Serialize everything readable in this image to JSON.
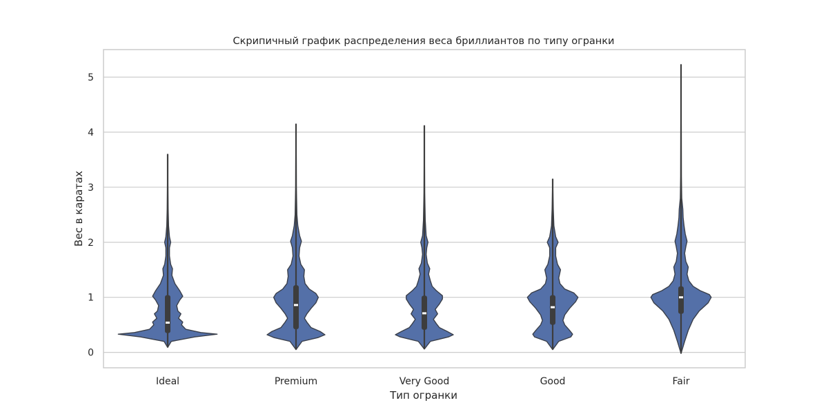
{
  "chart_data": {
    "type": "violin",
    "title": "Скрипичный график распределения веса бриллиантов по типу огранки",
    "xlabel": "Тип огранки",
    "ylabel": "Вес в каратах",
    "ylim": [
      -0.28,
      5.5
    ],
    "yticks": [
      0,
      1,
      2,
      3,
      4,
      5
    ],
    "grid": true,
    "colors": {
      "fill": "#5470a8",
      "edge": "#3a3f4a",
      "inner": "#3d3d3d",
      "median": "#ffffff",
      "grid": "#cccccc",
      "frame": "#cccccc"
    },
    "categories": [
      "Ideal",
      "Premium",
      "Very Good",
      "Good",
      "Fair"
    ],
    "violins": [
      {
        "category": "Ideal",
        "min": 0.09,
        "max": 3.6,
        "q1": 0.35,
        "median": 0.54,
        "q3": 1.04,
        "whisker_low": 0.2,
        "whisker_high": 2.05,
        "profile": [
          [
            0.09,
            0.0
          ],
          [
            0.2,
            0.06
          ],
          [
            0.28,
            0.45
          ],
          [
            0.33,
            0.82
          ],
          [
            0.36,
            0.55
          ],
          [
            0.42,
            0.3
          ],
          [
            0.5,
            0.23
          ],
          [
            0.55,
            0.25
          ],
          [
            0.62,
            0.18
          ],
          [
            0.7,
            0.22
          ],
          [
            0.75,
            0.17
          ],
          [
            0.85,
            0.15
          ],
          [
            0.95,
            0.2
          ],
          [
            1.02,
            0.25
          ],
          [
            1.12,
            0.2
          ],
          [
            1.25,
            0.12
          ],
          [
            1.4,
            0.07
          ],
          [
            1.52,
            0.08
          ],
          [
            1.6,
            0.05
          ],
          [
            1.75,
            0.03
          ],
          [
            1.9,
            0.03
          ],
          [
            2.0,
            0.05
          ],
          [
            2.1,
            0.03
          ],
          [
            2.3,
            0.015
          ],
          [
            2.6,
            0.008
          ],
          [
            3.0,
            0.004
          ],
          [
            3.6,
            0.0
          ]
        ]
      },
      {
        "category": "Premium",
        "min": 0.05,
        "max": 4.15,
        "q1": 0.42,
        "median": 0.86,
        "q3": 1.22,
        "whisker_low": 0.2,
        "whisker_high": 2.05,
        "profile": [
          [
            0.05,
            0.0
          ],
          [
            0.2,
            0.1
          ],
          [
            0.27,
            0.37
          ],
          [
            0.32,
            0.48
          ],
          [
            0.38,
            0.4
          ],
          [
            0.45,
            0.25
          ],
          [
            0.55,
            0.18
          ],
          [
            0.62,
            0.14
          ],
          [
            0.7,
            0.18
          ],
          [
            0.8,
            0.25
          ],
          [
            0.9,
            0.33
          ],
          [
            1.0,
            0.37
          ],
          [
            1.07,
            0.33
          ],
          [
            1.15,
            0.22
          ],
          [
            1.25,
            0.15
          ],
          [
            1.38,
            0.13
          ],
          [
            1.5,
            0.14
          ],
          [
            1.6,
            0.08
          ],
          [
            1.75,
            0.05
          ],
          [
            1.9,
            0.06
          ],
          [
            2.02,
            0.09
          ],
          [
            2.12,
            0.06
          ],
          [
            2.3,
            0.03
          ],
          [
            2.5,
            0.015
          ],
          [
            3.0,
            0.006
          ],
          [
            3.5,
            0.004
          ],
          [
            4.15,
            0.0
          ]
        ]
      },
      {
        "category": "Very Good",
        "min": 0.06,
        "max": 4.12,
        "q1": 0.41,
        "median": 0.71,
        "q3": 1.03,
        "whisker_low": 0.2,
        "whisker_high": 2.05,
        "profile": [
          [
            0.06,
            0.0
          ],
          [
            0.2,
            0.1
          ],
          [
            0.28,
            0.4
          ],
          [
            0.32,
            0.48
          ],
          [
            0.38,
            0.38
          ],
          [
            0.45,
            0.25
          ],
          [
            0.52,
            0.2
          ],
          [
            0.6,
            0.15
          ],
          [
            0.7,
            0.22
          ],
          [
            0.78,
            0.18
          ],
          [
            0.88,
            0.25
          ],
          [
            0.97,
            0.3
          ],
          [
            1.03,
            0.3
          ],
          [
            1.12,
            0.2
          ],
          [
            1.2,
            0.13
          ],
          [
            1.3,
            0.1
          ],
          [
            1.42,
            0.07
          ],
          [
            1.52,
            0.09
          ],
          [
            1.62,
            0.05
          ],
          [
            1.78,
            0.03
          ],
          [
            1.9,
            0.04
          ],
          [
            2.0,
            0.06
          ],
          [
            2.12,
            0.03
          ],
          [
            2.4,
            0.015
          ],
          [
            2.9,
            0.006
          ],
          [
            3.5,
            0.003
          ],
          [
            4.12,
            0.0
          ]
        ]
      },
      {
        "category": "Good",
        "min": 0.05,
        "max": 3.15,
        "q1": 0.5,
        "median": 0.82,
        "q3": 1.04,
        "whisker_low": 0.22,
        "whisker_high": 2.05,
        "profile": [
          [
            0.05,
            0.0
          ],
          [
            0.2,
            0.1
          ],
          [
            0.28,
            0.3
          ],
          [
            0.33,
            0.33
          ],
          [
            0.4,
            0.28
          ],
          [
            0.5,
            0.2
          ],
          [
            0.58,
            0.17
          ],
          [
            0.68,
            0.2
          ],
          [
            0.8,
            0.28
          ],
          [
            0.92,
            0.38
          ],
          [
            1.0,
            0.42
          ],
          [
            1.08,
            0.35
          ],
          [
            1.15,
            0.2
          ],
          [
            1.25,
            0.12
          ],
          [
            1.35,
            0.1
          ],
          [
            1.5,
            0.13
          ],
          [
            1.6,
            0.08
          ],
          [
            1.75,
            0.05
          ],
          [
            1.9,
            0.05
          ],
          [
            2.0,
            0.09
          ],
          [
            2.1,
            0.05
          ],
          [
            2.3,
            0.02
          ],
          [
            2.6,
            0.01
          ],
          [
            3.15,
            0.0
          ]
        ]
      },
      {
        "category": "Fair",
        "min": -0.02,
        "max": 5.23,
        "q1": 0.7,
        "median": 1.0,
        "q3": 1.2,
        "whisker_low": 0.22,
        "whisker_high": 1.92,
        "profile": [
          [
            -0.02,
            0.0
          ],
          [
            0.2,
            0.06
          ],
          [
            0.4,
            0.12
          ],
          [
            0.6,
            0.2
          ],
          [
            0.75,
            0.3
          ],
          [
            0.9,
            0.45
          ],
          [
            1.0,
            0.5
          ],
          [
            1.05,
            0.47
          ],
          [
            1.12,
            0.32
          ],
          [
            1.2,
            0.2
          ],
          [
            1.3,
            0.13
          ],
          [
            1.42,
            0.1
          ],
          [
            1.55,
            0.12
          ],
          [
            1.65,
            0.08
          ],
          [
            1.8,
            0.06
          ],
          [
            1.92,
            0.08
          ],
          [
            2.02,
            0.1
          ],
          [
            2.15,
            0.07
          ],
          [
            2.3,
            0.05
          ],
          [
            2.45,
            0.035
          ],
          [
            2.6,
            0.03
          ],
          [
            2.8,
            0.012
          ],
          [
            3.2,
            0.006
          ],
          [
            4.0,
            0.004
          ],
          [
            5.23,
            0.0
          ]
        ]
      }
    ]
  }
}
